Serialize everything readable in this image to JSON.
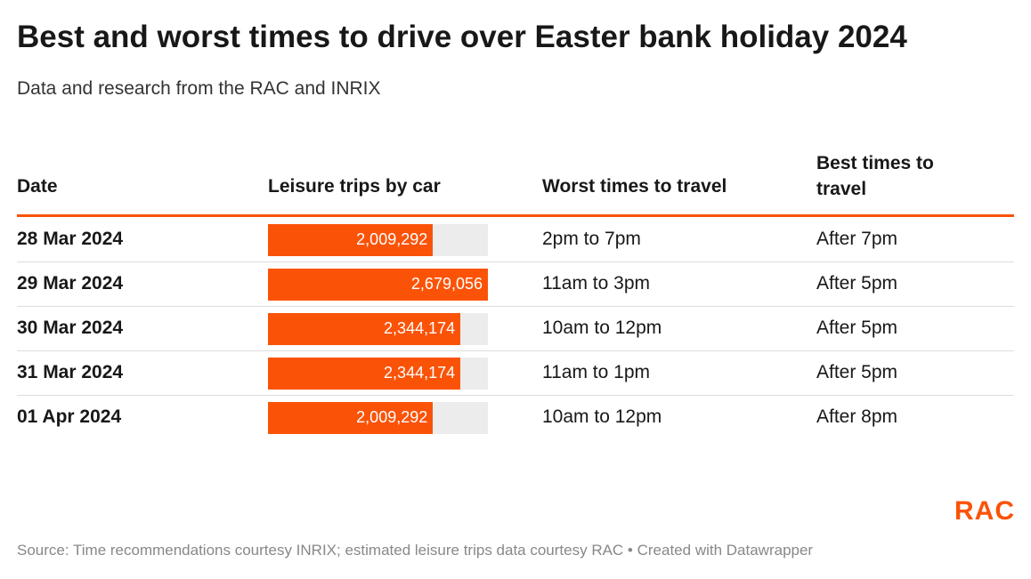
{
  "header": {
    "title": "Best and worst times to drive over Easter bank holiday 2024",
    "subtitle": "Data and research from the RAC and INRIX"
  },
  "table": {
    "columns": [
      "Date",
      "Leisure trips by car",
      "Worst times to travel",
      "Best times to travel"
    ],
    "rows": [
      [
        "28 Mar 2024",
        {
          "value": 2009292,
          "label": "2,009,292"
        },
        "2pm to 7pm",
        "After 7pm"
      ],
      [
        "29 Mar 2024",
        {
          "value": 2679056,
          "label": "2,679,056"
        },
        "11am to 3pm",
        "After 5pm"
      ],
      [
        "30 Mar 2024",
        {
          "value": 2344174,
          "label": "2,344,174"
        },
        "10am to 12pm",
        "After 5pm"
      ],
      [
        "31 Mar 2024",
        {
          "value": 2344174,
          "label": "2,344,174"
        },
        "11am to 1pm",
        "After 5pm"
      ],
      [
        "01 Apr 2024",
        {
          "value": 2009292,
          "label": "2,009,292"
        },
        "10am to 12pm",
        "After 8pm"
      ]
    ],
    "bar_color": "#fa5308"
  },
  "logo": "RAC",
  "footer": "Source: Time recommendations courtesy INRIX; estimated leisure trips data courtesy RAC • Created with Datawrapper"
}
